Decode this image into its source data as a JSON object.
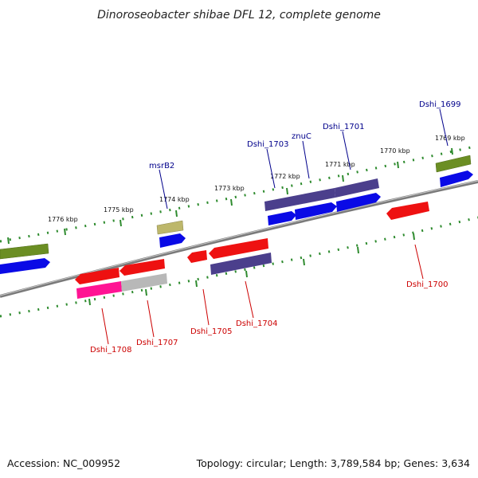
{
  "title": "Dinoroseobacter shibae DFL 12, complete genome",
  "footer": {
    "accession": "Accession: NC_009952",
    "topology": "Topology: circular; Length: 3,789,584 bp; Genes: 3,634"
  },
  "kbp_labels": [
    "1776 kbp",
    "1775 kbp",
    "1774 kbp",
    "1773 kbp",
    "1772 kbp",
    "1771 kbp",
    "1770 kbp",
    "1769 kbp"
  ],
  "colors": {
    "label_forward": "#00008b",
    "label_reverse": "#cc0000",
    "backbone": "#808080",
    "tick": "#2e8b2e",
    "gene_red": "#ee1111",
    "gene_blue": "#0a0ae6",
    "gene_purple": "#4b3f8c",
    "gene_olive": "#6b8e23",
    "gene_khaki": "#bdb76b",
    "gene_pink": "#ff1493",
    "gene_gray": "#b8b8b8"
  },
  "gene_labels": {
    "Dshi_1699": "Dshi_1699",
    "Dshi_1701": "Dshi_1701",
    "znuC": "znuC",
    "Dshi_1703": "Dshi_1703",
    "msrB2": "msrB2",
    "Dshi_1700": "Dshi_1700",
    "Dshi_1704": "Dshi_1704",
    "Dshi_1705": "Dshi_1705",
    "Dshi_1707": "Dshi_1707",
    "Dshi_1708": "Dshi_1708"
  }
}
